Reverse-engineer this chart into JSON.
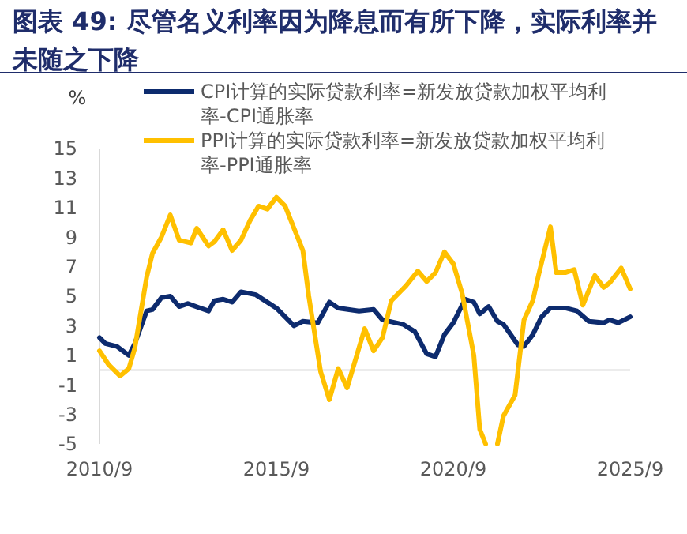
{
  "chart_data": {
    "type": "line",
    "title": "图表 49: 尽管名义利率因为降息而有所下降，实际利率并未随之下降",
    "ylabel": "%",
    "xlim": [
      "2010-09",
      "2025-09"
    ],
    "xticks": [
      {
        "value": "2010-09",
        "label": "2010/9"
      },
      {
        "value": "2015-09",
        "label": "2015/9"
      },
      {
        "value": "2020-09",
        "label": "2020/9"
      },
      {
        "value": "2025-09",
        "label": "2025/9"
      }
    ],
    "ylim": [
      -5,
      15
    ],
    "yticks": [
      -5,
      -3,
      -1,
      1,
      3,
      5,
      7,
      9,
      11,
      13,
      15
    ],
    "grid": false,
    "legend": "top",
    "line_style": "solid",
    "ref_lines": [
      {
        "axis": "y",
        "value": 0,
        "label": null,
        "color": "#d9d9d9"
      }
    ],
    "series": [
      {
        "name": "CPI计算的实际贷款利率=新发放贷款加权平均利率-CPI通胀率",
        "color": "#0d2b6e",
        "x": [
          "2010-09",
          "2010-11",
          "2011-03",
          "2011-07",
          "2011-09",
          "2012-01",
          "2012-03",
          "2012-06",
          "2012-09",
          "2012-12",
          "2013-03",
          "2013-10",
          "2013-12",
          "2014-03",
          "2014-06",
          "2014-09",
          "2015-02",
          "2015-09",
          "2015-12",
          "2016-03",
          "2016-06",
          "2016-11",
          "2017-03",
          "2017-06",
          "2018-01",
          "2018-06",
          "2018-09",
          "2019-04",
          "2019-08",
          "2019-12",
          "2020-03",
          "2020-06",
          "2020-09",
          "2021-01",
          "2021-04",
          "2021-06",
          "2021-09",
          "2021-12",
          "2022-02",
          "2022-07",
          "2022-09",
          "2022-12",
          "2023-03",
          "2023-06",
          "2023-11",
          "2024-03",
          "2024-07",
          "2024-12",
          "2025-02",
          "2025-05",
          "2025-09"
        ],
        "values": [
          2.2,
          1.8,
          1.6,
          1.0,
          1.8,
          4.0,
          4.1,
          4.9,
          5.0,
          4.3,
          4.5,
          4.0,
          4.7,
          4.8,
          4.6,
          5.3,
          5.1,
          4.2,
          3.6,
          3.0,
          3.3,
          3.2,
          4.6,
          4.2,
          4.0,
          4.1,
          3.4,
          3.1,
          2.6,
          1.1,
          0.9,
          2.4,
          3.2,
          4.8,
          4.6,
          3.8,
          4.3,
          3.3,
          3.1,
          1.7,
          1.6,
          2.4,
          3.6,
          4.2,
          4.2,
          4.0,
          3.3,
          3.2,
          3.4,
          3.2,
          3.6
        ]
      },
      {
        "name": "PPI计算的实际贷款利率=新发放贷款加权平均利率-PPI通胀率",
        "color": "#ffc000",
        "x": [
          "2010-09",
          "2010-12",
          "2011-04",
          "2011-07",
          "2011-09",
          "2012-01",
          "2012-03",
          "2012-06",
          "2012-09",
          "2012-12",
          "2013-04",
          "2013-06",
          "2013-10",
          "2013-12",
          "2014-03",
          "2014-06",
          "2014-09",
          "2014-12",
          "2015-03",
          "2015-06",
          "2015-09",
          "2015-12",
          "2016-06",
          "2016-08",
          "2016-12",
          "2017-03",
          "2017-06",
          "2017-09",
          "2018-03",
          "2018-06",
          "2018-09",
          "2018-12",
          "2019-05",
          "2019-09",
          "2019-12",
          "2020-03",
          "2020-06",
          "2020-09",
          "2020-12",
          "2021-04",
          "2021-06",
          "2021-08",
          "2021-10",
          "2021-12",
          "2022-02",
          "2022-06",
          "2022-09",
          "2022-12",
          "2023-02",
          "2023-06",
          "2023-08",
          "2023-11",
          "2024-02",
          "2024-05",
          "2024-09",
          "2024-12",
          "2025-02",
          "2025-06",
          "2025-09"
        ],
        "values": [
          1.3,
          0.4,
          -0.4,
          0.1,
          1.5,
          6.3,
          7.9,
          9.0,
          10.5,
          8.8,
          8.6,
          9.6,
          8.4,
          8.7,
          9.5,
          8.1,
          8.8,
          10.1,
          11.1,
          10.9,
          11.7,
          11.1,
          8.1,
          5.0,
          -0.1,
          -2.0,
          0.1,
          -1.2,
          2.8,
          1.3,
          2.2,
          4.7,
          5.7,
          6.7,
          6.0,
          6.6,
          8.0,
          7.2,
          5.2,
          1.0,
          -4.0,
          -5,
          null,
          -5,
          -3.1,
          -1.7,
          3.4,
          4.7,
          6.5,
          9.7,
          6.6,
          6.6,
          6.8,
          4.4,
          6.4,
          5.6,
          5.9,
          6.9,
          5.5
        ]
      }
    ]
  }
}
